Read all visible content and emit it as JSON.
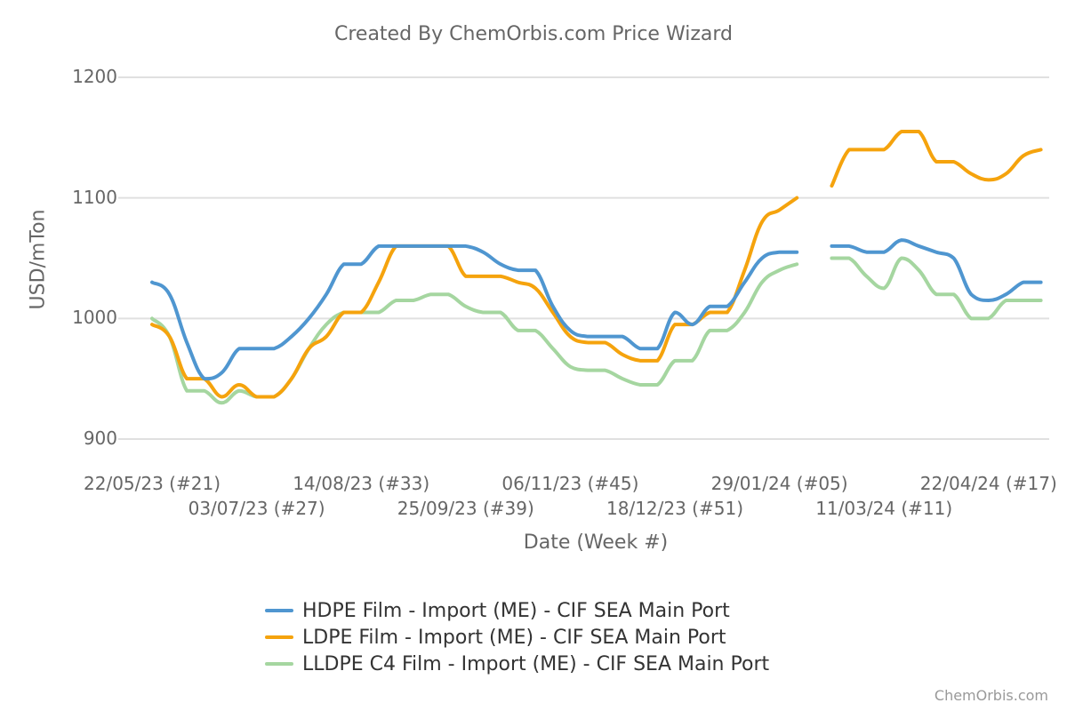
{
  "title": "Created By ChemOrbis.com Price Wizard",
  "credit": "ChemOrbis.com",
  "colors": {
    "hdpe": "#4f96d0",
    "ldpe": "#f5a30d",
    "lldpe": "#a5d6a0",
    "grid": "#e0e0e0",
    "text": "#666666"
  },
  "chart_data": {
    "type": "line",
    "title": "Created By ChemOrbis.com Price Wizard",
    "xlabel": "Date (Week #)",
    "ylabel": "USD/mTon",
    "ylim": [
      900,
      1200
    ],
    "yticks": [
      900,
      1000,
      1100,
      1200
    ],
    "grid": true,
    "legend_position": "bottom",
    "xtick_labels": [
      {
        "index": 0,
        "label": "22/05/23 (#21)",
        "row": 0
      },
      {
        "index": 6,
        "label": "03/07/23 (#27)",
        "row": 1
      },
      {
        "index": 12,
        "label": "14/08/23 (#33)",
        "row": 0
      },
      {
        "index": 18,
        "label": "25/09/23 (#39)",
        "row": 1
      },
      {
        "index": 24,
        "label": "06/11/23 (#45)",
        "row": 0
      },
      {
        "index": 30,
        "label": "18/12/23 (#51)",
        "row": 1
      },
      {
        "index": 36,
        "label": "29/01/24 (#05)",
        "row": 0
      },
      {
        "index": 42,
        "label": "11/03/24 (#11)",
        "row": 1
      },
      {
        "index": 48,
        "label": "22/04/24 (#17)",
        "row": 0
      }
    ],
    "x_count": 52,
    "series": [
      {
        "name": "HDPE Film - Import (ME) - CIF SEA Main Port",
        "color": "#4f96d0",
        "values": [
          1030,
          1020,
          980,
          950,
          955,
          975,
          975,
          975,
          985,
          1000,
          1020,
          1045,
          1045,
          1060,
          1060,
          1060,
          1060,
          1060,
          1060,
          1055,
          1045,
          1040,
          1040,
          1010,
          990,
          985,
          985,
          985,
          975,
          975,
          1005,
          995,
          1010,
          1010,
          1030,
          1050,
          1055,
          1055,
          null,
          1060,
          1060,
          1055,
          1055,
          1065,
          1060,
          1055,
          1050,
          1020,
          1015,
          1020,
          1030,
          1030
        ]
      },
      {
        "name": "LDPE Film - Import (ME) - CIF SEA Main Port",
        "color": "#f5a30d",
        "values": [
          995,
          985,
          950,
          950,
          935,
          945,
          935,
          935,
          950,
          975,
          985,
          1005,
          1005,
          1030,
          1060,
          1060,
          1060,
          1060,
          1035,
          1035,
          1035,
          1030,
          1025,
          1005,
          985,
          980,
          980,
          970,
          965,
          965,
          995,
          995,
          1005,
          1005,
          1040,
          1080,
          1090,
          1100,
          null,
          1110,
          1140,
          1140,
          1140,
          1155,
          1155,
          1130,
          1130,
          1120,
          1115,
          1120,
          1135,
          1140
        ]
      },
      {
        "name": "LLDPE C4 Film - Import (ME) - CIF SEA Main Port",
        "color": "#a5d6a0",
        "values": [
          1000,
          985,
          940,
          940,
          930,
          940,
          935,
          935,
          950,
          975,
          995,
          1005,
          1005,
          1005,
          1015,
          1015,
          1020,
          1020,
          1010,
          1005,
          1005,
          990,
          990,
          975,
          960,
          957,
          957,
          950,
          945,
          945,
          965,
          965,
          990,
          990,
          1005,
          1030,
          1040,
          1045,
          null,
          1050,
          1050,
          1035,
          1025,
          1050,
          1040,
          1020,
          1020,
          1000,
          1000,
          1015,
          1015,
          1015
        ]
      }
    ]
  }
}
